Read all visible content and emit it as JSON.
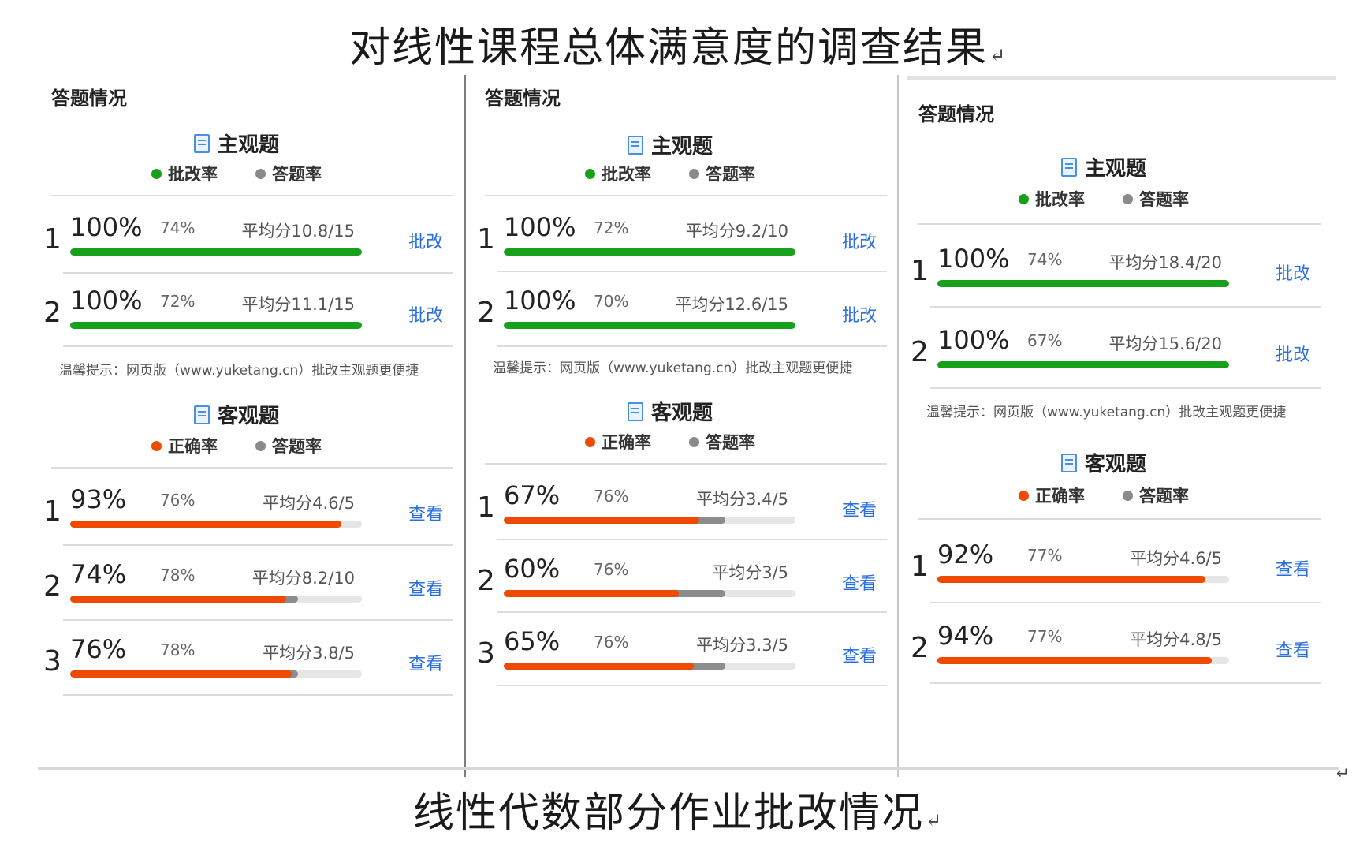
{
  "page": {
    "title_top": "对线性课程总体满意度的调查结果",
    "title_bottom": "线性代数部分作业批改情况",
    "paragraph_mark": "↵"
  },
  "colors": {
    "green": "#16a01c",
    "orange": "#f04a00",
    "gray_dot": "#8a8a8a",
    "link_blue": "#2a6ee0"
  },
  "panels": [
    {
      "heading": "答题情况",
      "subjective": {
        "title": "主观题",
        "legend": [
          "批改率",
          "答题率"
        ],
        "rows": [
          {
            "num": "1",
            "pct": "100%",
            "rate": "74%",
            "avg": "平均分10.8/15",
            "action": "批改",
            "fill": 1.0,
            "answer": 0.74
          },
          {
            "num": "2",
            "pct": "100%",
            "rate": "72%",
            "avg": "平均分11.1/15",
            "action": "批改",
            "fill": 1.0,
            "answer": 0.72
          }
        ]
      },
      "note": "温馨提示：网页版（www.yuketang.cn）批改主观题更便捷",
      "objective": {
        "title": "客观题",
        "legend": [
          "正确率",
          "答题率"
        ],
        "rows": [
          {
            "num": "1",
            "pct": "93%",
            "rate": "76%",
            "avg": "平均分4.6/5",
            "action": "查看",
            "fill": 0.93,
            "answer": 0.76
          },
          {
            "num": "2",
            "pct": "74%",
            "rate": "78%",
            "avg": "平均分8.2/10",
            "action": "查看",
            "fill": 0.74,
            "answer": 0.78
          },
          {
            "num": "3",
            "pct": "76%",
            "rate": "78%",
            "avg": "平均分3.8/5",
            "action": "查看",
            "fill": 0.76,
            "answer": 0.78
          }
        ]
      }
    },
    {
      "heading": "答题情况",
      "subjective": {
        "title": "主观题",
        "legend": [
          "批改率",
          "答题率"
        ],
        "rows": [
          {
            "num": "1",
            "pct": "100%",
            "rate": "72%",
            "avg": "平均分9.2/10",
            "action": "批改",
            "fill": 1.0,
            "answer": 0.72
          },
          {
            "num": "2",
            "pct": "100%",
            "rate": "70%",
            "avg": "平均分12.6/15",
            "action": "批改",
            "fill": 1.0,
            "answer": 0.7
          }
        ]
      },
      "note": "温馨提示：网页版（www.yuketang.cn）批改主观题更便捷",
      "objective": {
        "title": "客观题",
        "legend": [
          "正确率",
          "答题率"
        ],
        "rows": [
          {
            "num": "1",
            "pct": "67%",
            "rate": "76%",
            "avg": "平均分3.4/5",
            "action": "查看",
            "fill": 0.67,
            "answer": 0.76
          },
          {
            "num": "2",
            "pct": "60%",
            "rate": "76%",
            "avg": "平均分3/5",
            "action": "查看",
            "fill": 0.6,
            "answer": 0.76
          },
          {
            "num": "3",
            "pct": "65%",
            "rate": "76%",
            "avg": "平均分3.3/5",
            "action": "查看",
            "fill": 0.65,
            "answer": 0.76
          }
        ]
      }
    },
    {
      "heading": "答题情况",
      "subjective": {
        "title": "主观题",
        "legend": [
          "批改率",
          "答题率"
        ],
        "rows": [
          {
            "num": "1",
            "pct": "100%",
            "rate": "74%",
            "avg": "平均分18.4/20",
            "action": "批改",
            "fill": 1.0,
            "answer": 0.74
          },
          {
            "num": "2",
            "pct": "100%",
            "rate": "67%",
            "avg": "平均分15.6/20",
            "action": "批改",
            "fill": 1.0,
            "answer": 0.67
          }
        ]
      },
      "note": "温馨提示：网页版（www.yuketang.cn）批改主观题更便捷",
      "objective": {
        "title": "客观题",
        "legend": [
          "正确率",
          "答题率"
        ],
        "rows": [
          {
            "num": "1",
            "pct": "92%",
            "rate": "77%",
            "avg": "平均分4.6/5",
            "action": "查看",
            "fill": 0.92,
            "answer": 0.77
          },
          {
            "num": "2",
            "pct": "94%",
            "rate": "77%",
            "avg": "平均分4.8/5",
            "action": "查看",
            "fill": 0.94,
            "answer": 0.77
          }
        ]
      }
    }
  ]
}
